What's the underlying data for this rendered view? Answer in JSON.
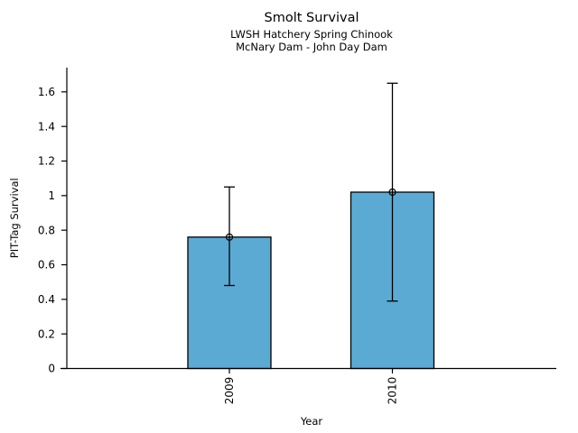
{
  "figure": {
    "title": "Smolt Survival",
    "subtitle_line1": "LWSH Hatchery Spring Chinook",
    "subtitle_line2": "McNary Dam - John Day Dam"
  },
  "chart_data": {
    "type": "bar",
    "title": "Smolt Survival",
    "subtitle": [
      "LWSH Hatchery Spring Chinook",
      "McNary Dam - John Day Dam"
    ],
    "xlabel": "Year",
    "ylabel": "PIT-Tag Survival",
    "categories": [
      "2009",
      "2010"
    ],
    "series": [
      {
        "name": "PIT-Tag Survival",
        "values": [
          0.76,
          1.02
        ],
        "ci_lower": [
          0.48,
          0.39
        ],
        "ci_upper": [
          1.05,
          1.65
        ]
      }
    ],
    "point_marker": "open-circle at bar top (point estimate)",
    "ylim": [
      0,
      1.74
    ],
    "yticks": [
      0,
      0.2,
      0.4,
      0.6,
      0.8,
      1,
      1.2,
      1.4,
      1.6
    ],
    "ytick_labels": [
      "0",
      "0.2",
      "0.4",
      "0.6",
      "0.8",
      "1",
      "1.2",
      "1.4",
      "1.6"
    ],
    "xtick_label_rotation_deg": 90,
    "grid": false,
    "legend": "none",
    "colors": {
      "bar_fill": "#5AAAD4",
      "bar_edge": "#000000",
      "error_bar": "#000000",
      "text": "#000000",
      "background": "#FFFFFF"
    }
  }
}
